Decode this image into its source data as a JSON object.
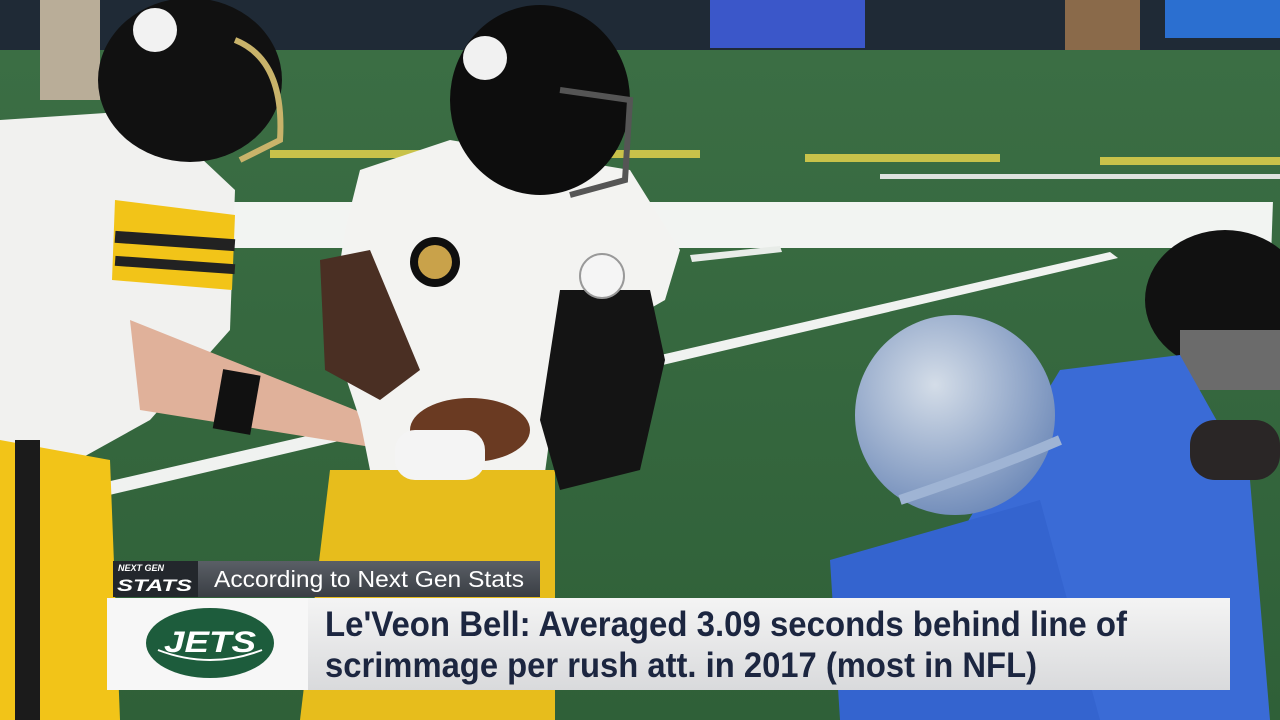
{
  "lower_third": {
    "source_logo": {
      "top": "NEXT GEN",
      "bottom": "STATS"
    },
    "source_text": "According to Next Gen Stats",
    "team_logo": "JETS",
    "headline": [
      "Le'Veon Bell:  Averaged 3.09 seconds behind line of",
      "scrimmage per rush att. in 2017 (most in NFL)"
    ]
  }
}
